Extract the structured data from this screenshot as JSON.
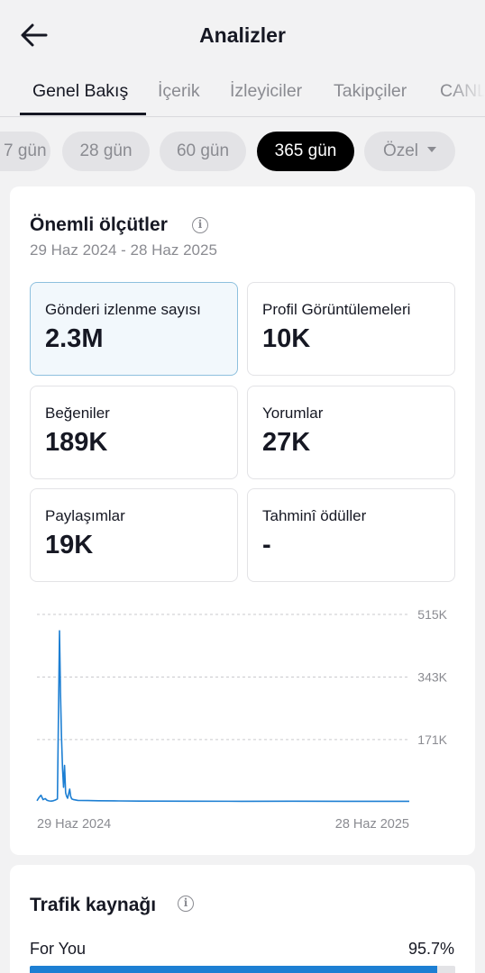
{
  "header": {
    "title": "Analizler",
    "back_icon": "arrow-left-icon"
  },
  "tabs": [
    {
      "label": "Genel Bakış",
      "active": true
    },
    {
      "label": "İçerik",
      "active": false
    },
    {
      "label": "İzleyiciler",
      "active": false
    },
    {
      "label": "Takipçiler",
      "active": false
    },
    {
      "label": "CANLI",
      "active": false
    }
  ],
  "ranges": [
    {
      "label": "7 gün",
      "active": false
    },
    {
      "label": "28 gün",
      "active": false
    },
    {
      "label": "60 gün",
      "active": false
    },
    {
      "label": "365 gün",
      "active": true
    },
    {
      "label": "Özel",
      "active": false
    }
  ],
  "key_metrics": {
    "title": "Önemli ölçütler",
    "date_range": "29 Haz 2024 - 28 Haz 2025",
    "metrics": [
      {
        "label": "Gönderi izlenme sayısı",
        "value": "2.3M",
        "selected": true
      },
      {
        "label": "Profil Görüntülemeleri",
        "value": "10K",
        "selected": false
      },
      {
        "label": "Beğeniler",
        "value": "189K",
        "selected": false
      },
      {
        "label": "Yorumlar",
        "value": "27K",
        "selected": false
      },
      {
        "label": "Paylaşımlar",
        "value": "19K",
        "selected": false
      },
      {
        "label": "Tahminî ödüller",
        "value": "-",
        "selected": false
      }
    ]
  },
  "chart_data": {
    "type": "line",
    "title": "",
    "xlabel": "",
    "ylabel": "",
    "x_tick_labels": [
      "29 Haz 2024",
      "28 Haz 2025"
    ],
    "y_tick_labels": [
      "515K",
      "343K",
      "171K"
    ],
    "y_ticks": [
      515000,
      343000,
      171000
    ],
    "ylim": [
      0,
      515000
    ],
    "grid": true,
    "color": "#1d7fd3",
    "series": [
      {
        "x": [
          0,
          2,
          4,
          6,
          8,
          10,
          12,
          14,
          16,
          18,
          20,
          22,
          23,
          24,
          25,
          26,
          27,
          28,
          29,
          30,
          32,
          33,
          34,
          36,
          40,
          50,
          60,
          80,
          100,
          150,
          200,
          250,
          300,
          364
        ],
        "values": [
          3000,
          12000,
          18000,
          6000,
          9000,
          4000,
          2500,
          2000,
          3000,
          5000,
          8000,
          470000,
          300000,
          180000,
          90000,
          40000,
          100000,
          25000,
          15000,
          10000,
          35000,
          15000,
          8000,
          6000,
          4000,
          3500,
          3000,
          2500,
          2000,
          1800,
          1500,
          1800,
          1600,
          1500
        ]
      }
    ]
  },
  "traffic": {
    "title": "Trafik kaynağı",
    "items": [
      {
        "label": "For You",
        "pct_label": "95.7%",
        "value": 95.7
      }
    ]
  }
}
